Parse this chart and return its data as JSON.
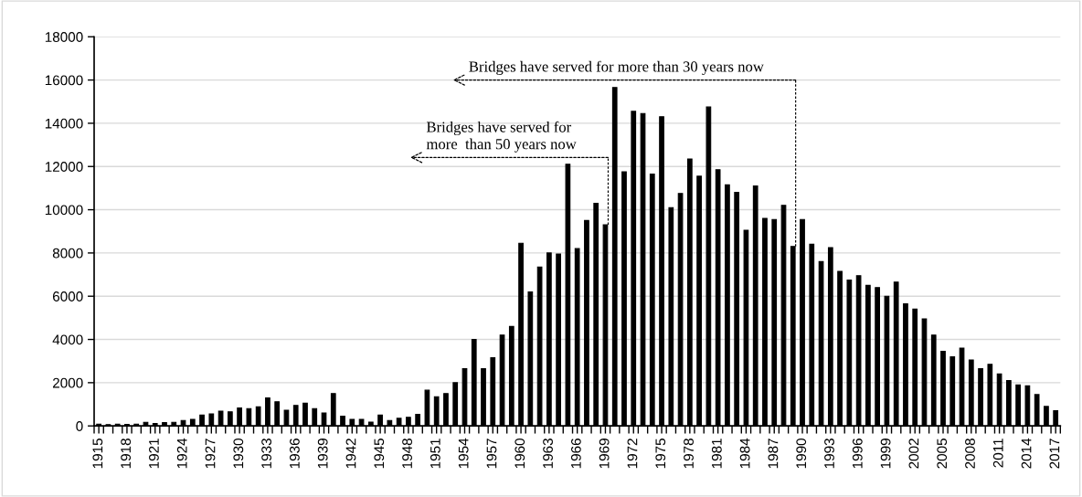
{
  "chart_data": {
    "type": "bar",
    "color": "#000000",
    "x": [
      1915,
      1916,
      1917,
      1918,
      1919,
      1920,
      1921,
      1922,
      1923,
      1924,
      1925,
      1926,
      1927,
      1928,
      1929,
      1930,
      1931,
      1932,
      1933,
      1934,
      1935,
      1936,
      1937,
      1938,
      1939,
      1940,
      1941,
      1942,
      1943,
      1944,
      1945,
      1946,
      1947,
      1948,
      1949,
      1950,
      1951,
      1952,
      1953,
      1954,
      1955,
      1956,
      1957,
      1958,
      1959,
      1960,
      1961,
      1962,
      1963,
      1964,
      1965,
      1966,
      1967,
      1968,
      1969,
      1970,
      1971,
      1972,
      1973,
      1974,
      1975,
      1976,
      1977,
      1978,
      1979,
      1980,
      1981,
      1982,
      1983,
      1984,
      1985,
      1986,
      1987,
      1988,
      1989,
      1990,
      1991,
      1992,
      1993,
      1994,
      1995,
      1996,
      1997,
      1998,
      1999,
      2000,
      2001,
      2002,
      2003,
      2004,
      2005,
      2006,
      2007,
      2008,
      2009,
      2010,
      2011,
      2012,
      2013,
      2014,
      2015,
      2016,
      2017
    ],
    "values": [
      80,
      60,
      80,
      70,
      80,
      170,
      110,
      150,
      170,
      250,
      300,
      500,
      560,
      680,
      650,
      830,
      800,
      880,
      1300,
      1120,
      730,
      950,
      1050,
      800,
      600,
      1500,
      450,
      300,
      300,
      180,
      500,
      250,
      350,
      400,
      530,
      1650,
      1350,
      1500,
      2000,
      2650,
      4000,
      2650,
      3150,
      4200,
      4600,
      8450,
      6200,
      7350,
      8000,
      7950,
      12100,
      8200,
      9500,
      10300,
      9300,
      15650,
      11750,
      14550,
      14450,
      11650,
      14300,
      10100,
      10750,
      12350,
      11550,
      14750,
      11850,
      11150,
      10800,
      9050,
      11100,
      9600,
      9550,
      10200,
      8300,
      9550,
      8400,
      7600,
      8250,
      7150,
      6750,
      6950,
      6500,
      6400,
      6000,
      6650,
      5650,
      5400,
      4950,
      4200,
      3450,
      3200,
      3600,
      3050,
      2650,
      2850,
      2400,
      2100,
      1900,
      1850,
      1450,
      900,
      700
    ],
    "xlim": [
      1914.5,
      2017.5
    ],
    "xticks": [
      1915,
      1918,
      1921,
      1924,
      1927,
      1930,
      1933,
      1936,
      1939,
      1942,
      1945,
      1948,
      1951,
      1954,
      1957,
      1960,
      1963,
      1966,
      1969,
      1972,
      1975,
      1978,
      1981,
      1984,
      1987,
      1990,
      1993,
      1996,
      1999,
      2002,
      2005,
      2008,
      2011,
      2014,
      2017,
      {
        "value": 1914.5,
        "label": null
      },
      {
        "value": 1915.5,
        "label": null
      },
      {
        "value": 1916.5,
        "label": null
      },
      {
        "value": 1917.5,
        "label": null
      },
      {
        "value": 1918.5,
        "label": null
      },
      {
        "value": 1919.5,
        "label": null
      },
      {
        "value": 1920.5,
        "label": null
      },
      {
        "value": 1921.5,
        "label": null
      },
      {
        "value": 1922.5,
        "label": null
      },
      {
        "value": 1923.5,
        "label": null
      },
      {
        "value": 1924.5,
        "label": null
      },
      {
        "value": 1925.5,
        "label": null
      },
      {
        "value": 1926.5,
        "label": null
      },
      {
        "value": 1927.5,
        "label": null
      },
      {
        "value": 1928.5,
        "label": null
      },
      {
        "value": 1929.5,
        "label": null
      },
      {
        "value": 1930.5,
        "label": null
      },
      {
        "value": 1931.5,
        "label": null
      },
      {
        "value": 1932.5,
        "label": null
      },
      {
        "value": 1933.5,
        "label": null
      },
      {
        "value": 1934.5,
        "label": null
      },
      {
        "value": 1935.5,
        "label": null
      },
      {
        "value": 1936.5,
        "label": null
      },
      {
        "value": 1937.5,
        "label": null
      },
      {
        "value": 1938.5,
        "label": null
      },
      {
        "value": 1939.5,
        "label": null
      },
      {
        "value": 1940.5,
        "label": null
      },
      {
        "value": 1941.5,
        "label": null
      },
      {
        "value": 1942.5,
        "label": null
      },
      {
        "value": 1943.5,
        "label": null
      },
      {
        "value": 1944.5,
        "label": null
      },
      {
        "value": 1945.5,
        "label": null
      },
      {
        "value": 1946.5,
        "label": null
      },
      {
        "value": 1947.5,
        "label": null
      },
      {
        "value": 1948.5,
        "label": null
      },
      {
        "value": 1949.5,
        "label": null
      },
      {
        "value": 1950.5,
        "label": null
      },
      {
        "value": 1951.5,
        "label": null
      },
      {
        "value": 1952.5,
        "label": null
      },
      {
        "value": 1953.5,
        "label": null
      },
      {
        "value": 1954.5,
        "label": null
      },
      {
        "value": 1955.5,
        "label": null
      },
      {
        "value": 1956.5,
        "label": null
      },
      {
        "value": 1957.5,
        "label": null
      },
      {
        "value": 1958.5,
        "label": null
      },
      {
        "value": 1959.5,
        "label": null
      },
      {
        "value": 1960.5,
        "label": null
      },
      {
        "value": 1961.5,
        "label": null
      },
      {
        "value": 1962.5,
        "label": null
      },
      {
        "value": 1963.5,
        "label": null
      },
      {
        "value": 1964.5,
        "label": null
      },
      {
        "value": 1965.5,
        "label": null
      },
      {
        "value": 1966.5,
        "label": null
      },
      {
        "value": 1967.5,
        "label": null
      },
      {
        "value": 1968.5,
        "label": null
      },
      {
        "value": 1969.5,
        "label": null
      },
      {
        "value": 1970.5,
        "label": null
      },
      {
        "value": 1971.5,
        "label": null
      },
      {
        "value": 1972.5,
        "label": null
      },
      {
        "value": 1973.5,
        "label": null
      },
      {
        "value": 1974.5,
        "label": null
      },
      {
        "value": 1975.5,
        "label": null
      },
      {
        "value": 1976.5,
        "label": null
      },
      {
        "value": 1977.5,
        "label": null
      },
      {
        "value": 1978.5,
        "label": null
      },
      {
        "value": 1979.5,
        "label": null
      },
      {
        "value": 1980.5,
        "label": null
      },
      {
        "value": 1981.5,
        "label": null
      },
      {
        "value": 1982.5,
        "label": null
      },
      {
        "value": 1983.5,
        "label": null
      },
      {
        "value": 1984.5,
        "label": null
      },
      {
        "value": 1985.5,
        "label": null
      },
      {
        "value": 1986.5,
        "label": null
      },
      {
        "value": 1987.5,
        "label": null
      },
      {
        "value": 1988.5,
        "label": null
      },
      {
        "value": 1989.5,
        "label": null
      },
      {
        "value": 1990.5,
        "label": null
      },
      {
        "value": 1991.5,
        "label": null
      },
      {
        "value": 1992.5,
        "label": null
      },
      {
        "value": 1993.5,
        "label": null
      },
      {
        "value": 1994.5,
        "label": null
      },
      {
        "value": 1995.5,
        "label": null
      },
      {
        "value": 1996.5,
        "label": null
      },
      {
        "value": 1997.5,
        "label": null
      },
      {
        "value": 1998.5,
        "label": null
      },
      {
        "value": 1999.5,
        "label": null
      },
      {
        "value": 2000.5,
        "label": null
      },
      {
        "value": 2001.5,
        "label": null
      },
      {
        "value": 2002.5,
        "label": null
      },
      {
        "value": 2003.5,
        "label": null
      },
      {
        "value": 2004.5,
        "label": null
      },
      {
        "value": 2005.5,
        "label": null
      },
      {
        "value": 2006.5,
        "label": null
      },
      {
        "value": 2007.5,
        "label": null
      },
      {
        "value": 2008.5,
        "label": null
      },
      {
        "value": 2009.5,
        "label": null
      },
      {
        "value": 2010.5,
        "label": null
      },
      {
        "value": 2011.5,
        "label": null
      },
      {
        "value": 2012.5,
        "label": null
      },
      {
        "value": 2013.5,
        "label": null
      },
      {
        "value": 2014.5,
        "label": null
      },
      {
        "value": 2015.5,
        "label": null
      },
      {
        "value": 2016.5,
        "label": null
      },
      {
        "value": 2017.5,
        "label": null
      }
    ],
    "ylim": [
      0,
      18000
    ],
    "yticks": [
      0,
      2000,
      4000,
      6000,
      8000,
      10000,
      12000,
      14000,
      16000,
      18000
    ],
    "grid": "y",
    "annotations": [
      "Bridges have served for more than 30 years now",
      "Bridges have served for\nmore  than 50 years now"
    ]
  }
}
